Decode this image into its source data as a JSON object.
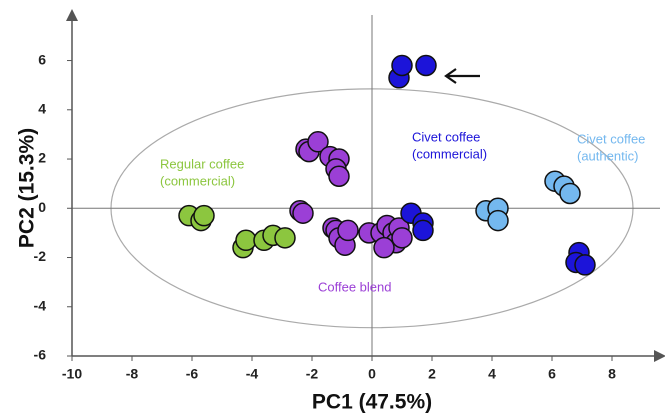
{
  "chart_data": {
    "type": "scatter",
    "xlabel": "PC1 (47.5%)",
    "ylabel": "PC2 (15.3%)",
    "xlim": [
      -10,
      9.6
    ],
    "ylim": [
      -6,
      7.85
    ],
    "xticks": [
      -10,
      -8,
      -6,
      -4,
      -2,
      0,
      2,
      4,
      6,
      8
    ],
    "yticks": [
      -6,
      -4,
      -2,
      0,
      2,
      4,
      6
    ],
    "ellipse": {
      "center": [
        0,
        0
      ],
      "radii": [
        8.7,
        4.85
      ]
    },
    "series": [
      {
        "label": [
          "Regular coffee",
          "(commercial)"
        ],
        "color": "#8cc63f",
        "x": [
          -6.1,
          -5.7,
          -5.6,
          -4.3,
          -4.2,
          -3.6,
          -3.3,
          -2.9
        ],
        "values": [
          -0.3,
          -0.5,
          -0.3,
          -1.6,
          -1.3,
          -1.3,
          -1.1,
          -1.2
        ]
      },
      {
        "label": [
          "Coffee blend"
        ],
        "color": "#9b3fd6",
        "x": [
          -2.2,
          -2.1,
          -1.8,
          -1.4,
          -1.1,
          -1.2,
          -1.1,
          -2.4,
          -2.3,
          -1.3,
          -1.2,
          -1.1,
          -0.9,
          -0.8,
          -0.1,
          0.3,
          0.5,
          0.7,
          0.8,
          0.9,
          1.0,
          0.4
        ],
        "values": [
          2.4,
          2.3,
          2.7,
          2.1,
          2.0,
          1.6,
          1.3,
          -0.1,
          -0.2,
          -0.8,
          -0.9,
          -1.2,
          -1.5,
          -0.9,
          -1.0,
          -1.0,
          -0.7,
          -1.0,
          -1.4,
          -0.8,
          -1.2,
          -1.6
        ]
      },
      {
        "label": [
          "Civet coffee",
          "(commercial)"
        ],
        "color": "#1c14d9",
        "x": [
          0.9,
          1.0,
          1.8,
          1.3,
          1.7,
          1.7,
          6.9,
          6.8,
          7.1
        ],
        "values": [
          5.3,
          5.8,
          5.8,
          -0.2,
          -0.6,
          -0.9,
          -1.8,
          -2.2,
          -2.3
        ]
      },
      {
        "label": [
          "Civet coffee",
          "(authentic)"
        ],
        "color": "#74b8ef",
        "x": [
          3.8,
          4.2,
          4.2,
          6.1,
          6.4,
          6.6
        ],
        "values": [
          -0.1,
          0.0,
          -0.5,
          1.1,
          0.9,
          0.6
        ]
      }
    ]
  }
}
